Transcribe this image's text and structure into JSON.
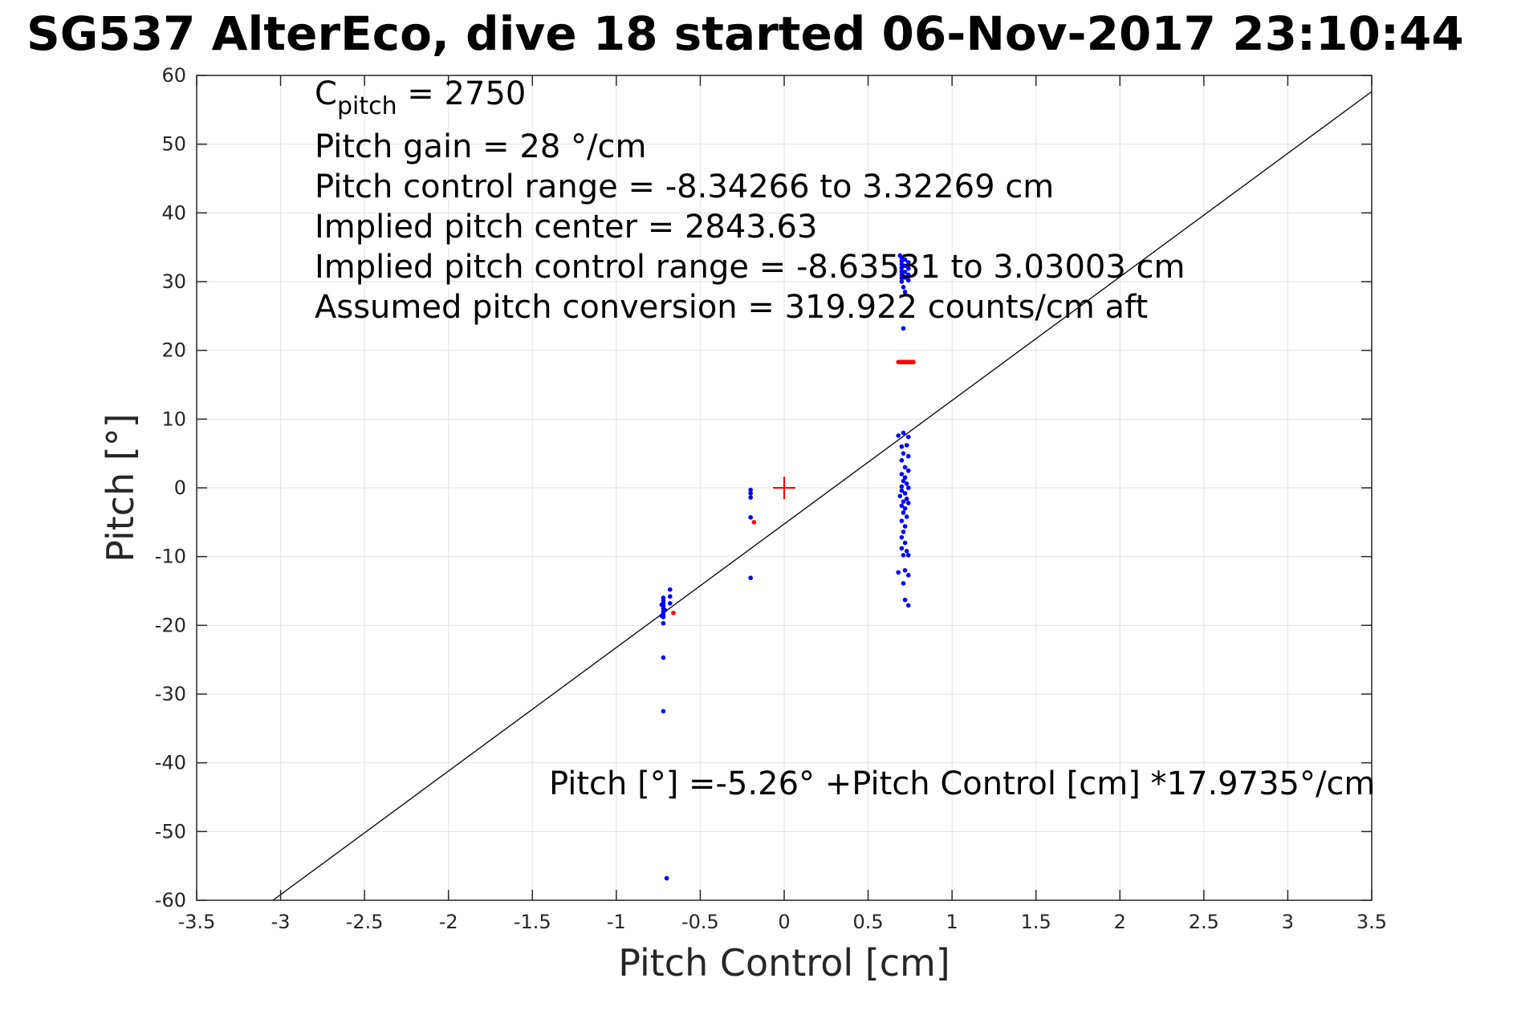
{
  "chart_data": {
    "type": "scatter",
    "title": "SG537 AlterEco, dive 18 started 06-Nov-2017 23:10:44",
    "xlabel": "Pitch Control [cm]",
    "ylabel": "Pitch [°]",
    "xlim": [
      -3.5,
      3.5
    ],
    "ylim": [
      -60,
      60
    ],
    "xticks": [
      -3.5,
      -3,
      -2.5,
      -2,
      -1.5,
      -1,
      -0.5,
      0,
      0.5,
      1,
      1.5,
      2,
      2.5,
      3,
      3.5
    ],
    "yticks": [
      -60,
      -50,
      -40,
      -30,
      -20,
      -10,
      0,
      10,
      20,
      30,
      40,
      50,
      60
    ],
    "grid": true,
    "annotations": {
      "c_pitch_main": "C",
      "c_pitch_sub": "pitch",
      "c_pitch_value": " = 2750",
      "pitch_gain": "Pitch gain = 28 °/cm",
      "control_range": "Pitch control range = -8.34266 to 3.32269 cm",
      "implied_center": "Implied pitch center = 2843.63",
      "implied_range": "Implied pitch control range = -8.63531 to 3.03003 cm",
      "conversion": "Assumed pitch conversion = 319.922 counts/cm aft",
      "fit_equation": "Pitch [°] =-5.26° +Pitch Control [cm] *17.9735°/cm"
    },
    "fit_line": {
      "intercept": -5.26,
      "slope": 17.9735,
      "color": "#000000"
    },
    "center_marker": {
      "x": 0,
      "y": 0,
      "color": "#ff0000"
    },
    "series": [
      {
        "color": "#0000ff",
        "points": [
          [
            -0.72,
            -16
          ],
          [
            -0.72,
            -16.4
          ],
          [
            -0.72,
            -16.8
          ],
          [
            -0.72,
            -17.2
          ],
          [
            -0.72,
            -17.6
          ],
          [
            -0.72,
            -18
          ],
          [
            -0.72,
            -18.4
          ],
          [
            -0.72,
            -18.8
          ],
          [
            -0.73,
            -17
          ],
          [
            -0.71,
            -17.8
          ],
          [
            -0.73,
            -18.6
          ],
          [
            -0.72,
            -19.7
          ],
          [
            -0.72,
            -24.7
          ],
          [
            -0.72,
            -32.5
          ],
          [
            -0.7,
            -56.8
          ],
          [
            -0.68,
            -14.8
          ],
          [
            -0.68,
            -15.8
          ],
          [
            -0.68,
            -16.8
          ],
          [
            -0.2,
            -0.3
          ],
          [
            -0.2,
            -0.8
          ],
          [
            -0.2,
            -1.4
          ],
          [
            -0.2,
            -4.3
          ],
          [
            -0.2,
            -13.1
          ],
          [
            0.7,
            33.5
          ],
          [
            0.7,
            33.0
          ],
          [
            0.7,
            32.5
          ],
          [
            0.7,
            32.0
          ],
          [
            0.7,
            31.5
          ],
          [
            0.7,
            31.0
          ],
          [
            0.7,
            30.5
          ],
          [
            0.7,
            30.0
          ],
          [
            0.72,
            33.2
          ],
          [
            0.72,
            32.3
          ],
          [
            0.72,
            31.4
          ],
          [
            0.72,
            30.6
          ],
          [
            0.74,
            32.8
          ],
          [
            0.74,
            31.9
          ],
          [
            0.74,
            31.0
          ],
          [
            0.74,
            30.2
          ],
          [
            0.69,
            33.8
          ],
          [
            0.71,
            29.2
          ],
          [
            0.72,
            28.5
          ],
          [
            0.71,
            23.2
          ],
          [
            0.68,
            7.6
          ],
          [
            0.71,
            8.0
          ],
          [
            0.74,
            7.4
          ],
          [
            0.7,
            6.0
          ],
          [
            0.73,
            6.2
          ],
          [
            0.71,
            5.0
          ],
          [
            0.74,
            4.6
          ],
          [
            0.7,
            4.0
          ],
          [
            0.72,
            3.0
          ],
          [
            0.74,
            2.5
          ],
          [
            0.7,
            2.0
          ],
          [
            0.72,
            1.5
          ],
          [
            0.71,
            1.0
          ],
          [
            0.73,
            0.6
          ],
          [
            0.7,
            0.2
          ],
          [
            0.74,
            0.0
          ],
          [
            0.7,
            -0.4
          ],
          [
            0.72,
            -0.8
          ],
          [
            0.69,
            -1.2
          ],
          [
            0.73,
            -1.6
          ],
          [
            0.71,
            -2.0
          ],
          [
            0.74,
            -2.2
          ],
          [
            0.7,
            -2.6
          ],
          [
            0.72,
            -3.0
          ],
          [
            0.71,
            -3.6
          ],
          [
            0.73,
            -4.2
          ],
          [
            0.7,
            -4.8
          ],
          [
            0.72,
            -5.6
          ],
          [
            0.71,
            -6.4
          ],
          [
            0.7,
            -7.2
          ],
          [
            0.72,
            -8.0
          ],
          [
            0.7,
            -8.8
          ],
          [
            0.73,
            -9.2
          ],
          [
            0.71,
            -9.8
          ],
          [
            0.74,
            -9.8
          ],
          [
            0.68,
            -12.3
          ],
          [
            0.72,
            -12.0
          ],
          [
            0.74,
            -12.7
          ],
          [
            0.71,
            -13.9
          ],
          [
            0.72,
            -16.3
          ],
          [
            0.74,
            -17.1
          ]
        ]
      },
      {
        "color": "#ff0000",
        "points": [
          [
            -0.66,
            -18.2
          ],
          [
            -0.18,
            -5.0
          ],
          [
            0.68,
            18.3
          ],
          [
            0.69,
            18.3
          ],
          [
            0.7,
            18.3
          ],
          [
            0.71,
            18.3
          ],
          [
            0.72,
            18.3
          ],
          [
            0.73,
            18.3
          ],
          [
            0.74,
            18.3
          ],
          [
            0.75,
            18.3
          ],
          [
            0.76,
            18.3
          ],
          [
            0.77,
            18.3
          ]
        ]
      }
    ]
  }
}
